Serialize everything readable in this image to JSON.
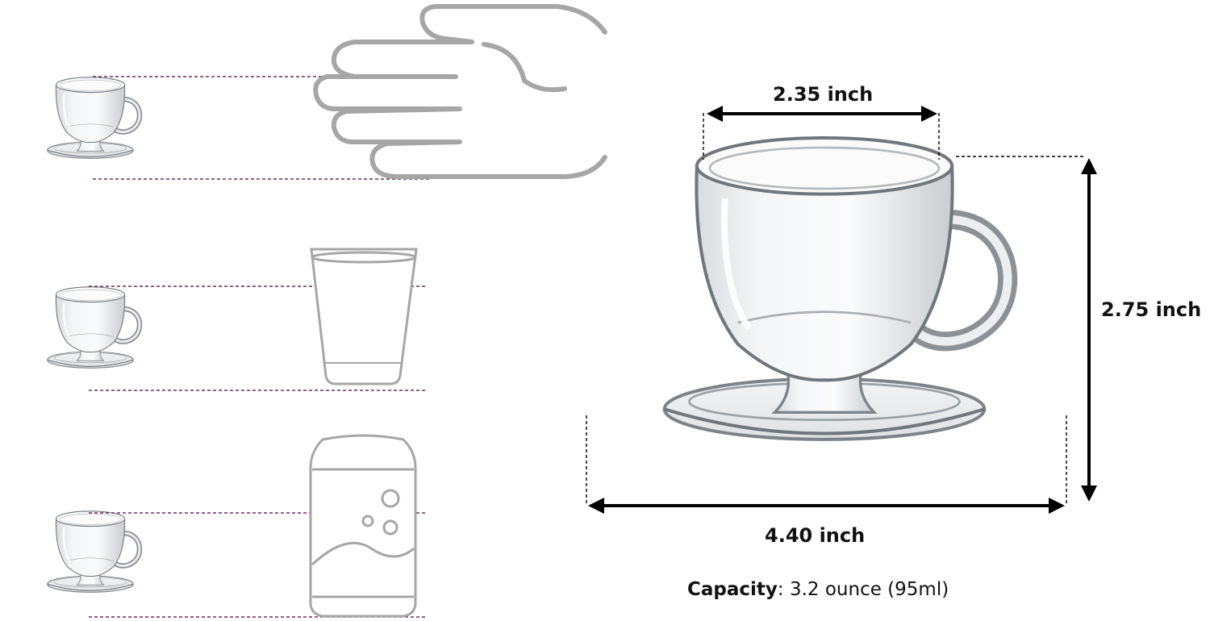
{
  "dimensions": {
    "top_width": "2.35 inch",
    "height": "2.75 inch",
    "saucer_width": "4.40 inch"
  },
  "capacity": {
    "label": "Capacity",
    "separator": ": ",
    "value": "3.2 ounce (95ml)"
  },
  "comparisons": [
    {
      "name": "hand-icon"
    },
    {
      "name": "drinking-glass-icon"
    },
    {
      "name": "soda-can-icon"
    }
  ],
  "colors": {
    "guide_line": "#6e2c5e",
    "outline_gray": "#a6a6a6",
    "arrow": "#000000",
    "glass": "#7d8388"
  }
}
